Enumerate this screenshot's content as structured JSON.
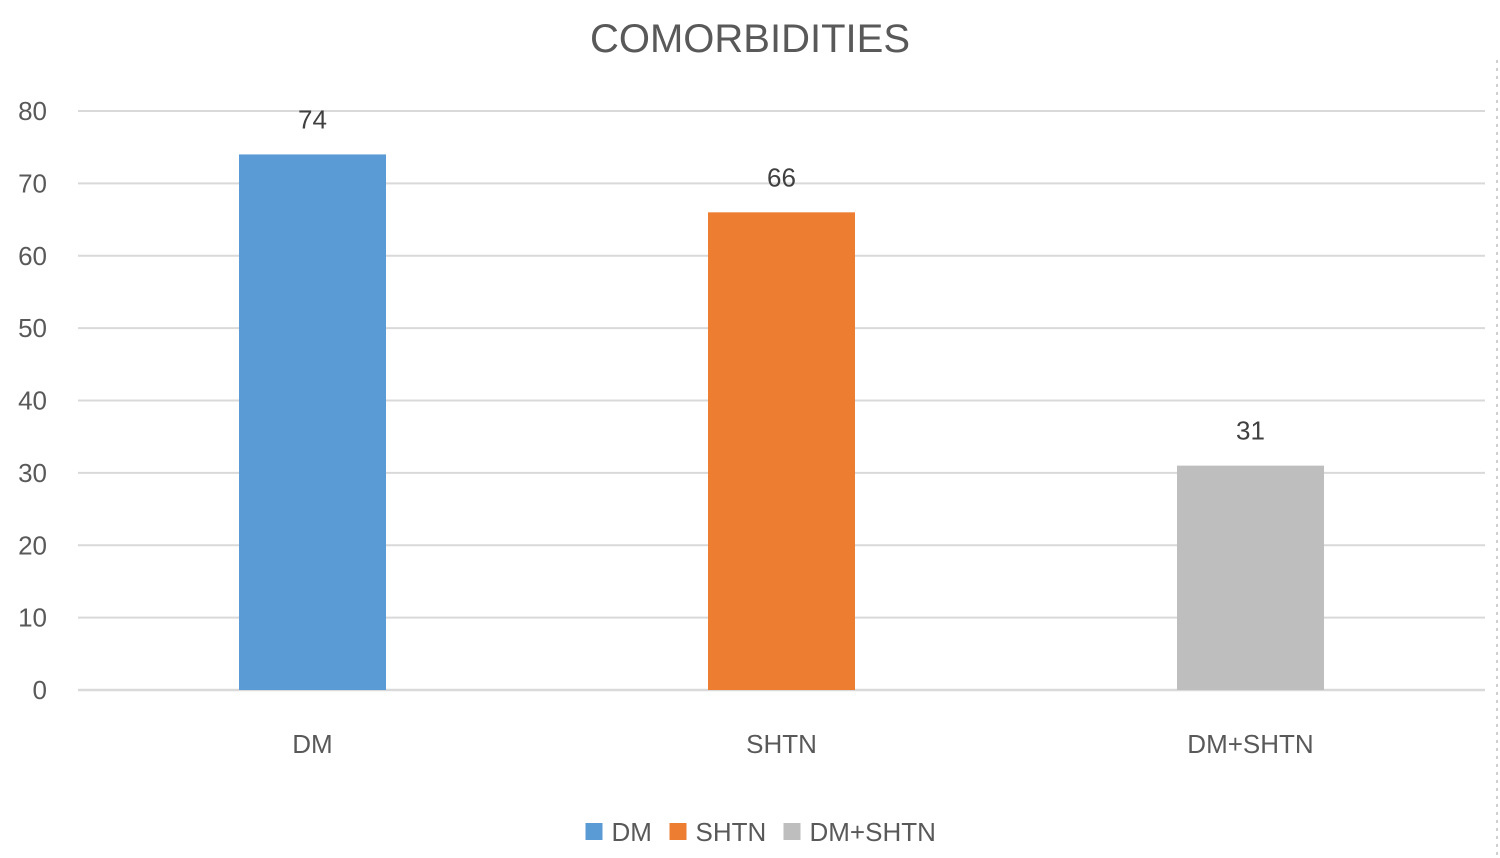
{
  "chart_data": {
    "type": "bar",
    "title": "COMORBIDITIES",
    "categories": [
      "DM",
      "SHTN",
      "DM+SHTN"
    ],
    "values": [
      74,
      66,
      31
    ],
    "colors": [
      "#5b9bd5",
      "#ed7d31",
      "#bfbebe"
    ],
    "ylim": [
      0,
      80
    ],
    "yticks": [
      0,
      10,
      20,
      30,
      40,
      50,
      60,
      70,
      80
    ],
    "grid": true,
    "data_labels": true,
    "legend": {
      "position": "bottom",
      "entries": [
        "DM",
        "SHTN",
        "DM+SHTN"
      ]
    }
  }
}
